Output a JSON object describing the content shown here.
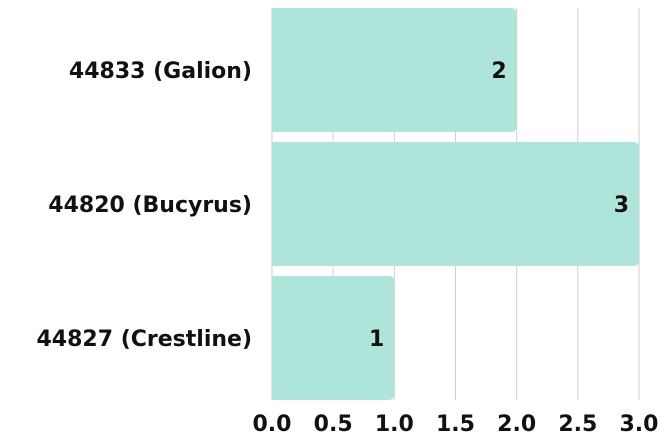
{
  "chart_data": {
    "type": "barh",
    "categories": [
      "44833 (Galion)",
      "44820 (Bucyrus)",
      "44827 (Crestline)"
    ],
    "values": [
      2,
      3,
      1
    ],
    "color": "#ade5da",
    "xlim": [
      0,
      3
    ],
    "xticks": [
      {
        "value": 0,
        "label": "0.0"
      },
      0.5,
      {
        "value": 1,
        "label": "1.0"
      },
      1.5,
      {
        "value": 2,
        "label": "2.0"
      },
      2.5,
      {
        "value": 3,
        "label": "3.0"
      }
    ],
    "grid": true
  }
}
